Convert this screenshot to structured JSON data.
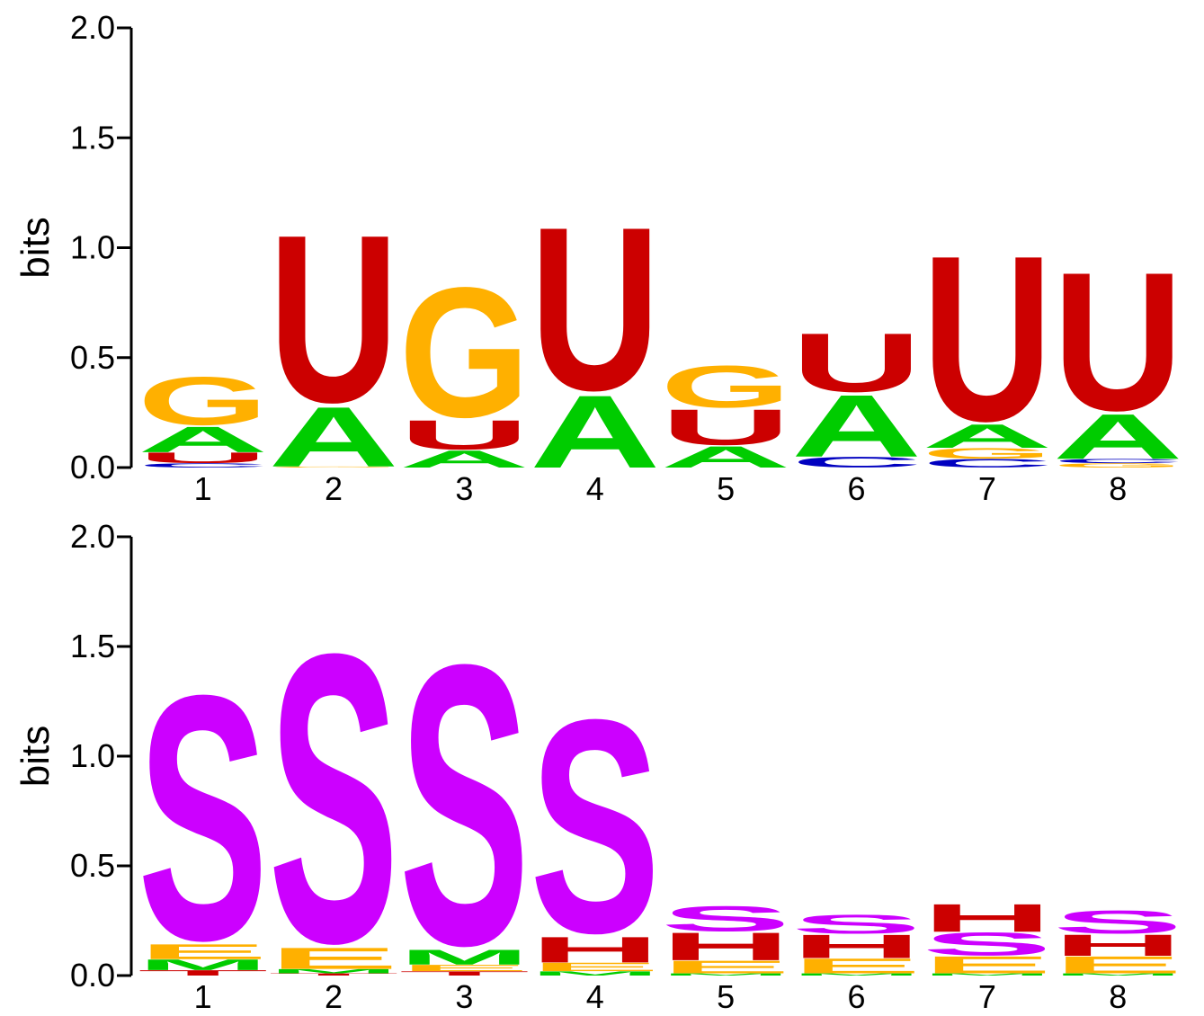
{
  "chart_data": [
    {
      "type": "sequence-logo",
      "ylabel": "bits",
      "ylim": [
        0,
        2
      ],
      "yticks": [
        "0.0",
        "0.5",
        "1.0",
        "1.5",
        "2.0"
      ],
      "positions": [
        "1",
        "2",
        "3",
        "4",
        "5",
        "6",
        "7",
        "8"
      ],
      "colors": {
        "A": "#00cc00",
        "C": "#0000c0",
        "G": "#ffb000",
        "U": "#cc0000"
      },
      "stacks": [
        [
          {
            "letter": "C",
            "bits": 0.02
          },
          {
            "letter": "U",
            "bits": 0.05
          },
          {
            "letter": "A",
            "bits": 0.12
          },
          {
            "letter": "G",
            "bits": 0.23
          }
        ],
        [
          {
            "letter": "G",
            "bits": 0.005
          },
          {
            "letter": "A",
            "bits": 0.28
          },
          {
            "letter": "U",
            "bits": 0.8
          }
        ],
        [
          {
            "letter": "A",
            "bits": 0.08
          },
          {
            "letter": "U",
            "bits": 0.14
          },
          {
            "letter": "G",
            "bits": 0.62
          }
        ],
        [
          {
            "letter": "A",
            "bits": 0.34
          },
          {
            "letter": "U",
            "bits": 0.78
          }
        ],
        [
          {
            "letter": "A",
            "bits": 0.1
          },
          {
            "letter": "U",
            "bits": 0.17
          },
          {
            "letter": "G",
            "bits": 0.2
          }
        ],
        [
          {
            "letter": "C",
            "bits": 0.05
          },
          {
            "letter": "A",
            "bits": 0.29
          },
          {
            "letter": "U",
            "bits": 0.28
          }
        ],
        [
          {
            "letter": "C",
            "bits": 0.04
          },
          {
            "letter": "G",
            "bits": 0.05
          },
          {
            "letter": "A",
            "bits": 0.11
          },
          {
            "letter": "U",
            "bits": 0.79
          }
        ],
        [
          {
            "letter": "G",
            "bits": 0.02
          },
          {
            "letter": "C",
            "bits": 0.02
          },
          {
            "letter": "A",
            "bits": 0.21
          },
          {
            "letter": "U",
            "bits": 0.66
          }
        ]
      ]
    },
    {
      "type": "sequence-logo",
      "ylabel": "bits",
      "ylim": [
        0,
        2
      ],
      "yticks": [
        "0.0",
        "0.5",
        "1.0",
        "1.5",
        "2.0"
      ],
      "positions": [
        "1",
        "2",
        "3",
        "4",
        "5",
        "6",
        "7",
        "8"
      ],
      "colors": {
        "S": "#cc00ff",
        "H": "#cc0000",
        "E": "#ffb000",
        "M": "#00cc00",
        "T": "#cc0000"
      },
      "stacks": [
        [
          {
            "letter": "T",
            "bits": 0.025
          },
          {
            "letter": "M",
            "bits": 0.05
          },
          {
            "letter": "E",
            "bits": 0.07
          },
          {
            "letter": "S",
            "bits": 1.17
          }
        ],
        [
          {
            "letter": "T",
            "bits": 0.01
          },
          {
            "letter": "M",
            "bits": 0.02
          },
          {
            "letter": "E",
            "bits": 0.1
          },
          {
            "letter": "S",
            "bits": 1.38
          }
        ],
        [
          {
            "letter": "T",
            "bits": 0.02
          },
          {
            "letter": "E",
            "bits": 0.03
          },
          {
            "letter": "M",
            "bits": 0.07
          },
          {
            "letter": "S",
            "bits": 1.34
          }
        ],
        [
          {
            "letter": "M",
            "bits": 0.02
          },
          {
            "letter": "E",
            "bits": 0.04
          },
          {
            "letter": "H",
            "bits": 0.12
          },
          {
            "letter": "S",
            "bits": 1.02
          }
        ],
        [
          {
            "letter": "M",
            "bits": 0.01
          },
          {
            "letter": "E",
            "bits": 0.06
          },
          {
            "letter": "H",
            "bits": 0.13
          },
          {
            "letter": "S",
            "bits": 0.12
          }
        ],
        [
          {
            "letter": "M",
            "bits": 0.01
          },
          {
            "letter": "E",
            "bits": 0.07
          },
          {
            "letter": "H",
            "bits": 0.11
          },
          {
            "letter": "S",
            "bits": 0.09
          }
        ],
        [
          {
            "letter": "M",
            "bits": 0.01
          },
          {
            "letter": "E",
            "bits": 0.08
          },
          {
            "letter": "S",
            "bits": 0.11
          },
          {
            "letter": "H",
            "bits": 0.13
          }
        ],
        [
          {
            "letter": "M",
            "bits": 0.01
          },
          {
            "letter": "E",
            "bits": 0.08
          },
          {
            "letter": "H",
            "bits": 0.1
          },
          {
            "letter": "S",
            "bits": 0.11
          }
        ]
      ]
    }
  ]
}
